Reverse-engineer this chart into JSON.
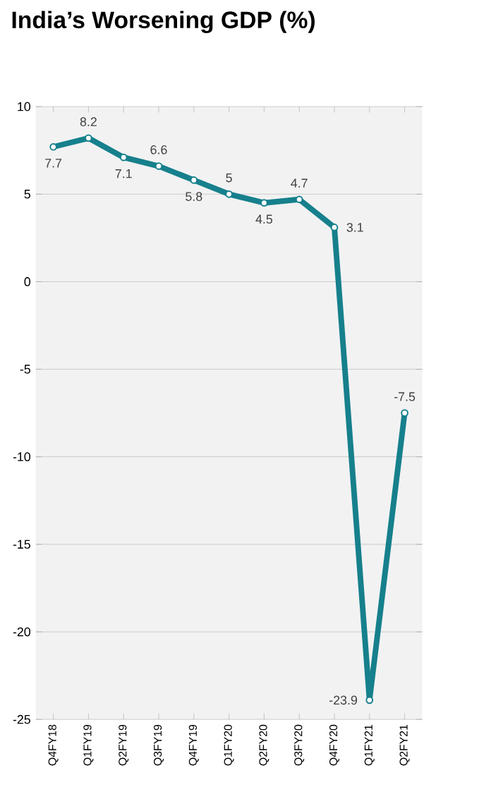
{
  "chart_data": {
    "type": "line",
    "title": "India’s Worsening GDP (%)",
    "categories": [
      "Q4FY18",
      "Q1FY19",
      "Q2FY19",
      "Q3FY19",
      "Q4FY19",
      "Q1FY20",
      "Q2FY20",
      "Q3FY20",
      "Q4FY20",
      "Q1FY21",
      "Q2FY21"
    ],
    "values": [
      7.7,
      8.2,
      7.1,
      6.6,
      5.8,
      5,
      4.5,
      4.7,
      3.1,
      -23.9,
      -7.5
    ],
    "color": "#16808c",
    "marker": "circle",
    "data_labels": true,
    "grid": "y",
    "ylim": [
      -25,
      10
    ],
    "yticks": [
      -25,
      -20,
      -15,
      -10,
      -5,
      0,
      5,
      10
    ]
  }
}
